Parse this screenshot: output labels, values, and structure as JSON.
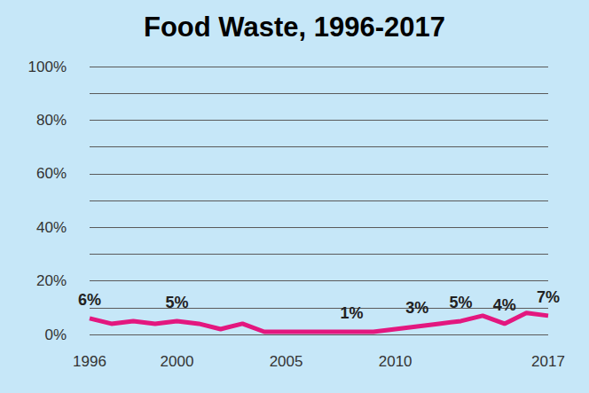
{
  "chart_data": {
    "type": "line",
    "title": "Food Waste, 1996-2017",
    "x": [
      1996,
      1997,
      1998,
      1999,
      2000,
      2001,
      2002,
      2003,
      2004,
      2005,
      2006,
      2007,
      2008,
      2009,
      2010,
      2011,
      2012,
      2013,
      2014,
      2015,
      2016,
      2017
    ],
    "values": [
      6,
      4,
      5,
      4,
      5,
      4,
      2,
      4,
      1,
      1,
      1,
      1,
      1,
      1,
      2,
      3,
      4,
      5,
      7,
      4,
      8,
      7
    ],
    "value_labels": [
      "6%",
      null,
      null,
      null,
      "5%",
      null,
      null,
      null,
      null,
      null,
      null,
      null,
      "1%",
      null,
      null,
      "3%",
      null,
      "5%",
      null,
      "4%",
      null,
      "7%"
    ],
    "color": "#e3177f",
    "xlim": [
      1996,
      2017
    ],
    "xticks": [
      1996,
      2000,
      2005,
      2010,
      2017
    ],
    "ylim": [
      0,
      100
    ],
    "yticks": [
      {
        "value": 0,
        "label": "0%"
      },
      {
        "value": 20,
        "label": "20%"
      },
      {
        "value": 40,
        "label": "40%"
      },
      {
        "value": 60,
        "label": "60%"
      },
      {
        "value": 80,
        "label": "80%"
      },
      {
        "value": 100,
        "label": "100%"
      }
    ],
    "grid": true,
    "data_labels": true
  }
}
